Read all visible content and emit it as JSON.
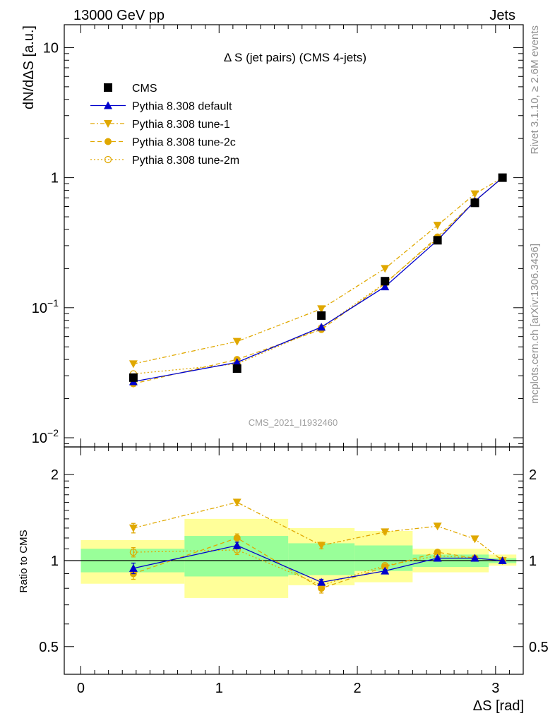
{
  "header": {
    "left": "13000 GeV pp",
    "right": "Jets"
  },
  "side_text": {
    "rivet": "Rivet 3.1.10, ≥ 2.6M events",
    "mcplots": "mcplots.cern.ch [arXiv:1306.3436]"
  },
  "watermark": "CMS_2021_I1932460",
  "colors": {
    "data": "#000000",
    "default": "#0000cc",
    "tune": "#e0a800",
    "band_inner": "#99ff99",
    "band_outer": "#ffff99"
  },
  "chart_data": [
    {
      "type": "line",
      "panel": "main",
      "title": "Δ S (jet pairs) (CMS 4-jets)",
      "ylabel": "dN/dΔS [a.u.]",
      "yscale": "log",
      "ylim": [
        0.0085,
        15
      ],
      "xlim": [
        -0.12,
        3.2
      ],
      "y_ticks": [
        {
          "value": 10,
          "label": "10"
        },
        {
          "value": 1,
          "label": "1"
        },
        {
          "value": 0.1,
          "label": "10^-1"
        },
        {
          "value": 0.01,
          "label": "10^-2"
        }
      ],
      "legend_position": "top-left",
      "x": [
        0.38,
        1.13,
        1.74,
        2.2,
        2.58,
        2.85,
        3.05
      ],
      "series": [
        {
          "name": "CMS",
          "style": "data",
          "values": [
            0.029,
            0.034,
            0.087,
            0.16,
            0.33,
            0.64,
            1.0
          ]
        },
        {
          "name": "Pythia 8.308 default",
          "style": "default",
          "values": [
            0.027,
            0.038,
            0.071,
            0.145,
            0.33,
            0.66,
            1.0
          ]
        },
        {
          "name": "Pythia 8.308 tune-1",
          "style": "tune1",
          "values": [
            0.037,
            0.055,
            0.098,
            0.2,
            0.43,
            0.75,
            1.0
          ]
        },
        {
          "name": "Pythia 8.308 tune-2c",
          "style": "tune2c",
          "values": [
            0.026,
            0.04,
            0.068,
            0.153,
            0.35,
            0.66,
            1.0
          ]
        },
        {
          "name": "Pythia 8.308 tune-2m",
          "style": "tune2m",
          "values": [
            0.031,
            0.037,
            0.07,
            0.155,
            0.34,
            0.66,
            1.0
          ]
        }
      ]
    },
    {
      "type": "line",
      "panel": "ratio",
      "ylabel": "Ratio to CMS",
      "xlabel": "ΔS [rad]",
      "yscale": "log",
      "ylim": [
        0.4,
        2.5
      ],
      "xlim": [
        -0.12,
        3.2
      ],
      "x_ticks": [
        0,
        1,
        2,
        3
      ],
      "y_ticks": [
        0.5,
        1,
        2
      ],
      "reference_line": 1,
      "bands": [
        {
          "x0": 0.0,
          "x1": 0.75,
          "inner": [
            0.91,
            1.1
          ],
          "outer": [
            0.83,
            1.18
          ]
        },
        {
          "x0": 0.75,
          "x1": 1.5,
          "inner": [
            0.88,
            1.22
          ],
          "outer": [
            0.74,
            1.4
          ]
        },
        {
          "x0": 1.5,
          "x1": 1.98,
          "inner": [
            0.89,
            1.15
          ],
          "outer": [
            0.82,
            1.3
          ]
        },
        {
          "x0": 1.98,
          "x1": 2.4,
          "inner": [
            0.92,
            1.13
          ],
          "outer": [
            0.84,
            1.27
          ]
        },
        {
          "x0": 2.4,
          "x1": 2.95,
          "inner": [
            0.95,
            1.05
          ],
          "outer": [
            0.91,
            1.1
          ]
        },
        {
          "x0": 2.95,
          "x1": 3.15,
          "inner": [
            0.98,
            1.02
          ],
          "outer": [
            0.96,
            1.05
          ]
        }
      ],
      "x": [
        0.38,
        1.13,
        1.74,
        2.2,
        2.58,
        2.85,
        3.05
      ],
      "series": [
        {
          "name": "Pythia 8.308 default",
          "style": "default",
          "values": [
            0.94,
            1.13,
            0.84,
            0.92,
            1.02,
            1.02,
            1.0
          ],
          "errors": [
            0.04,
            0.03,
            0.02,
            0.01,
            0.01,
            0.01,
            0.0
          ]
        },
        {
          "name": "Pythia 8.308 tune-1",
          "style": "tune1",
          "values": [
            1.3,
            1.6,
            1.13,
            1.26,
            1.32,
            1.19,
            1.0
          ],
          "errors": [
            0.05,
            0.04,
            0.03,
            0.02,
            0.01,
            0.01,
            0.0
          ]
        },
        {
          "name": "Pythia 8.308 tune-2c",
          "style": "tune2c",
          "values": [
            0.9,
            1.2,
            0.8,
            0.95,
            1.07,
            1.02,
            1.0
          ],
          "errors": [
            0.04,
            0.04,
            0.03,
            0.01,
            0.01,
            0.01,
            0.0
          ]
        },
        {
          "name": "Pythia 8.308 tune-2m",
          "style": "tune2m",
          "values": [
            1.07,
            1.09,
            0.82,
            0.96,
            1.04,
            1.02,
            1.0
          ],
          "errors": [
            0.04,
            0.04,
            0.03,
            0.01,
            0.01,
            0.01,
            0.0
          ]
        }
      ]
    }
  ]
}
